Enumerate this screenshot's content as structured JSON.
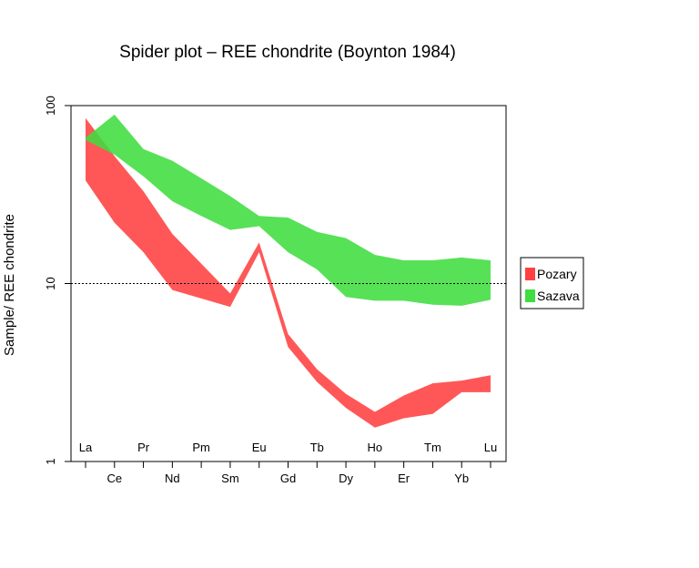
{
  "chart_data": {
    "type": "area",
    "title": "Spider plot –  REE chondrite (Boynton 1984)",
    "ylabel": "Sample/ REE chondrite",
    "xlabel": "",
    "y_scale": "log",
    "ylim": [
      1,
      100
    ],
    "y_ticks": [
      "1",
      "10",
      "100"
    ],
    "reference_line": 10,
    "categories": [
      "La",
      "Ce",
      "Pr",
      "Nd",
      "Pm",
      "Sm",
      "Eu",
      "Gd",
      "Tb",
      "Dy",
      "Ho",
      "Er",
      "Tm",
      "Yb",
      "Lu"
    ],
    "inner_labels": [
      "La",
      "Pr",
      "Pm",
      "Eu",
      "Tb",
      "Ho",
      "Tm",
      "Lu"
    ],
    "outer_labels": [
      "Ce",
      "Nd",
      "Sm",
      "Gd",
      "Dy",
      "Er",
      "Yb"
    ],
    "legend_position": "right",
    "series": [
      {
        "name": "Pozary",
        "color": "#FF4040",
        "upper": [
          85,
          52,
          33,
          19,
          13,
          8.8,
          17,
          5.2,
          3.3,
          2.4,
          1.9,
          2.35,
          2.75,
          2.85,
          3.05
        ],
        "lower": [
          38,
          22,
          15,
          9.2,
          8.2,
          7.4,
          15,
          4.4,
          2.8,
          2.0,
          1.55,
          1.75,
          1.85,
          2.45,
          2.45
        ],
        "skip": [
          false,
          false,
          false,
          false,
          true,
          false,
          false,
          false,
          false,
          false,
          false,
          false,
          false,
          false,
          false
        ]
      },
      {
        "name": "Sazava",
        "color": "#40DD40",
        "upper": [
          66,
          89,
          57,
          49,
          39,
          31,
          24,
          23.5,
          19.5,
          18,
          14.5,
          13.5,
          13.5,
          14,
          13.5
        ],
        "lower": [
          64,
          53,
          40,
          29,
          24,
          20,
          21,
          15,
          12,
          8.4,
          8.0,
          8.0,
          7.6,
          7.5,
          8.1
        ],
        "skip": [
          false,
          false,
          false,
          false,
          false,
          false,
          false,
          false,
          false,
          false,
          false,
          false,
          false,
          false,
          false
        ]
      }
    ]
  }
}
